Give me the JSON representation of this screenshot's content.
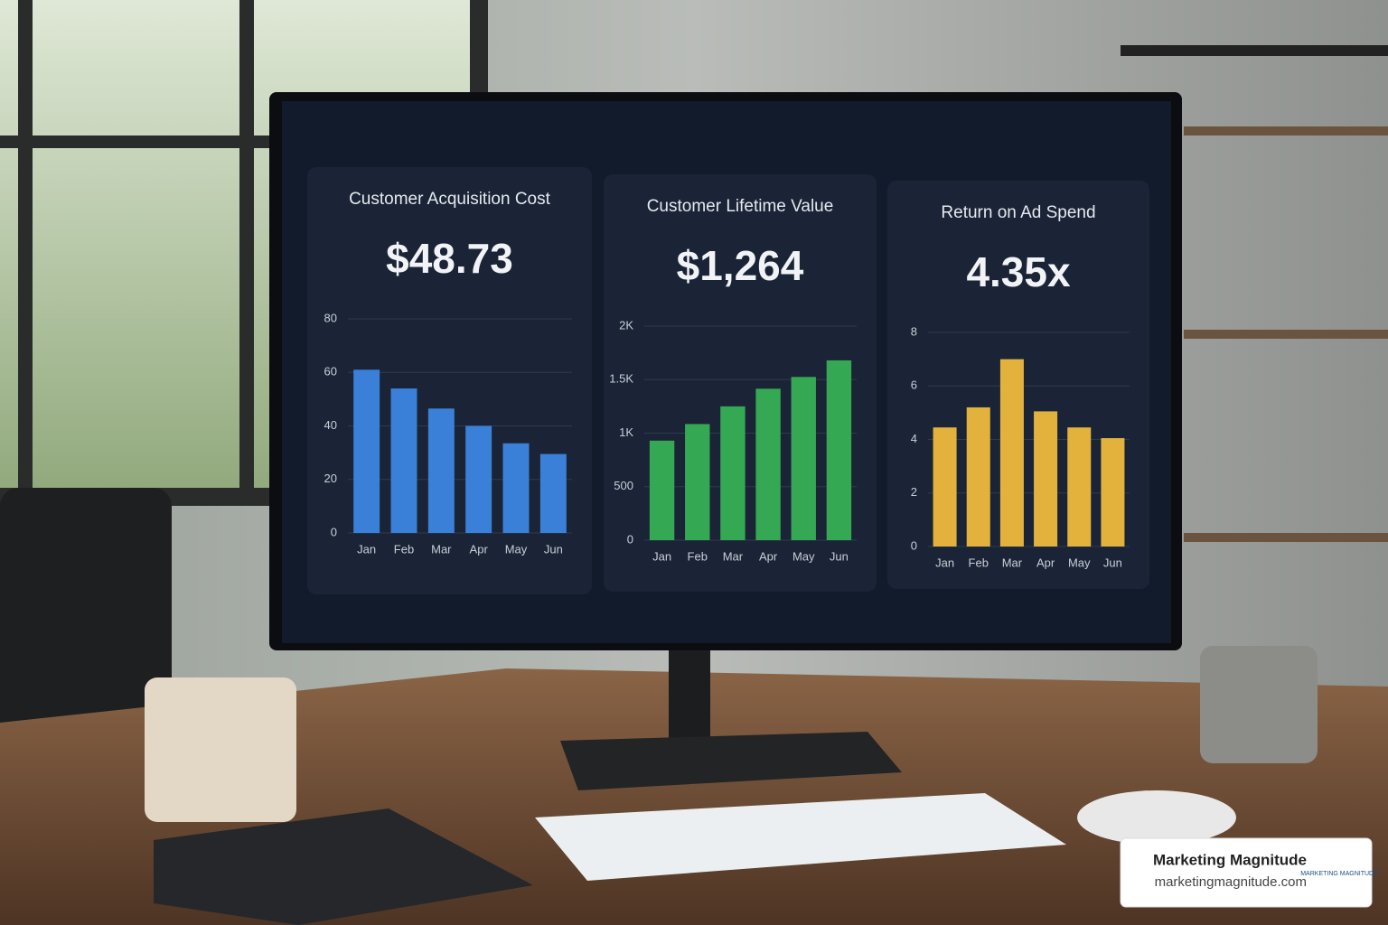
{
  "chart_data": [
    {
      "type": "bar",
      "title": "Customer Acquisition Cost",
      "headline": "$48.73",
      "categories": [
        "Jan",
        "Feb",
        "Mar",
        "Apr",
        "May",
        "Jun"
      ],
      "values": [
        61,
        54,
        46.5,
        40,
        33.5,
        29.5
      ],
      "color": "#3a80d9",
      "ylim": [
        0,
        80
      ],
      "yticks": [
        0,
        20,
        40,
        60,
        80
      ],
      "grid": true
    },
    {
      "type": "bar",
      "title": "Customer Lifetime Value",
      "headline": "$1,264",
      "categories": [
        "Jan",
        "Feb",
        "Mar",
        "Apr",
        "May",
        "Jun"
      ],
      "values": [
        930,
        1085,
        1250,
        1415,
        1525,
        1680
      ],
      "color": "#34a853",
      "ylim": [
        0,
        2000
      ],
      "yticks": [
        0,
        500,
        {
          "value": 1000,
          "label": "1K"
        },
        {
          "value": 1500,
          "label": "1.5K"
        },
        {
          "value": 2000,
          "label": "2K"
        }
      ],
      "grid": true
    },
    {
      "type": "bar",
      "title": "Return on Ad Spend",
      "headline": "4.35x",
      "categories": [
        "Jan",
        "Feb",
        "Mar",
        "Apr",
        "May",
        "Jun"
      ],
      "values": [
        4.45,
        5.2,
        7,
        5.05,
        4.45,
        4.05
      ],
      "color": "#e3b23c",
      "ylim": [
        0,
        8
      ],
      "yticks": [
        0,
        2,
        4,
        6,
        8
      ],
      "grid": true
    }
  ],
  "watermark": {
    "brand": "Marketing Magnitude",
    "url": "marketingmagnitude.com",
    "logo": "MARKETING MAGNITUDE"
  }
}
